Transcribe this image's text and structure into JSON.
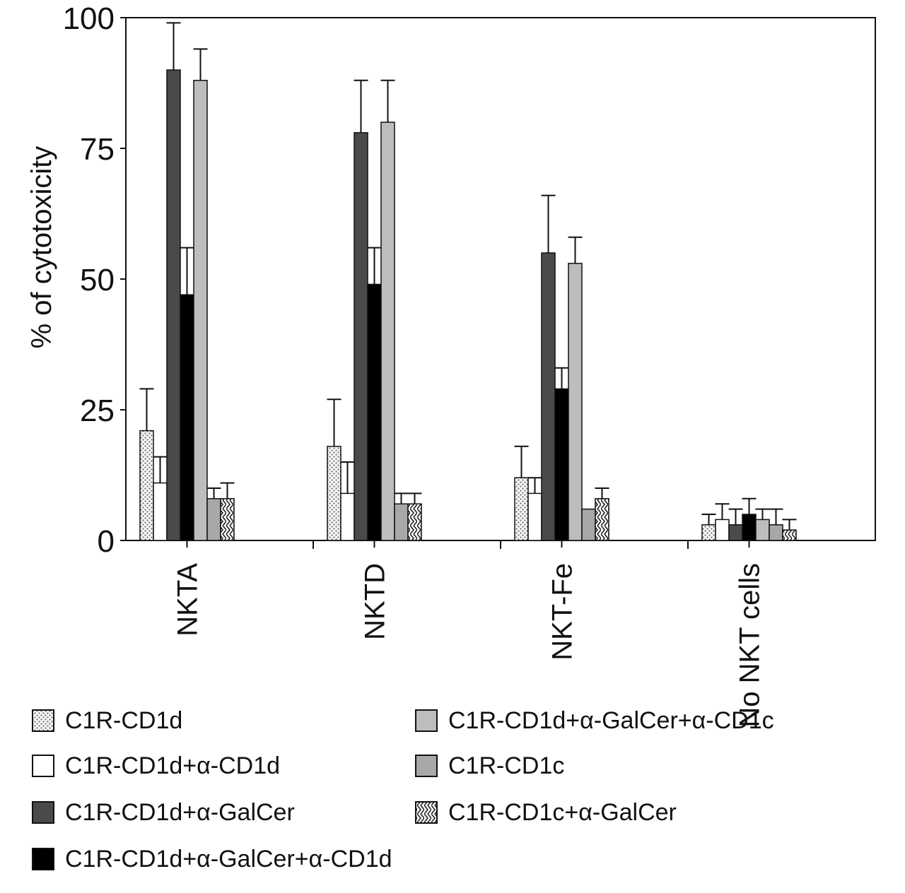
{
  "chart_data": {
    "type": "bar",
    "title": "",
    "xlabel": "",
    "ylabel": "% of cytotoxicity",
    "ylim": [
      0,
      100
    ],
    "yticks": [
      0,
      25,
      50,
      75,
      100
    ],
    "grid": false,
    "legend_position": "bottom",
    "categories": [
      "NKTA",
      "NKTD",
      "NKT-Fe",
      "No NKT cells"
    ],
    "series": [
      {
        "name": "C1R-CD1d",
        "pattern": "dots",
        "color": "#e6e6e6",
        "values": [
          21,
          18,
          12,
          3
        ],
        "errors": [
          8,
          9,
          6,
          2
        ]
      },
      {
        "name": "C1R-CD1d+α-CD1d",
        "pattern": "white",
        "color": "#ffffff",
        "values": [
          11,
          9,
          9,
          4
        ],
        "errors": [
          5,
          6,
          3,
          3
        ]
      },
      {
        "name": "C1R-CD1d+α-GalCer",
        "pattern": "dark",
        "color": "#4a4a4a",
        "values": [
          90,
          78,
          55,
          3
        ],
        "errors": [
          9,
          10,
          11,
          3
        ]
      },
      {
        "name": "C1R-CD1d+α-GalCer+α-CD1d",
        "pattern": "black",
        "color": "#000000",
        "values": [
          47,
          49,
          29,
          5
        ],
        "errors": [
          9,
          7,
          4,
          3
        ]
      },
      {
        "name": "C1R-CD1d+α-GalCer+α-CD1c",
        "pattern": "light",
        "color": "#bdbdbd",
        "values": [
          88,
          80,
          53,
          4
        ],
        "errors": [
          6,
          8,
          5,
          2
        ]
      },
      {
        "name": "C1R-CD1c",
        "pattern": "light",
        "color": "#a8a8a8",
        "values": [
          8,
          7,
          6,
          3
        ],
        "errors": [
          2,
          2,
          0,
          3
        ]
      },
      {
        "name": "C1R-CD1c+α-GalCer",
        "pattern": "zigzag",
        "color": "#ffffff",
        "values": [
          8,
          7,
          8,
          2
        ],
        "errors": [
          3,
          2,
          2,
          2
        ]
      }
    ]
  }
}
